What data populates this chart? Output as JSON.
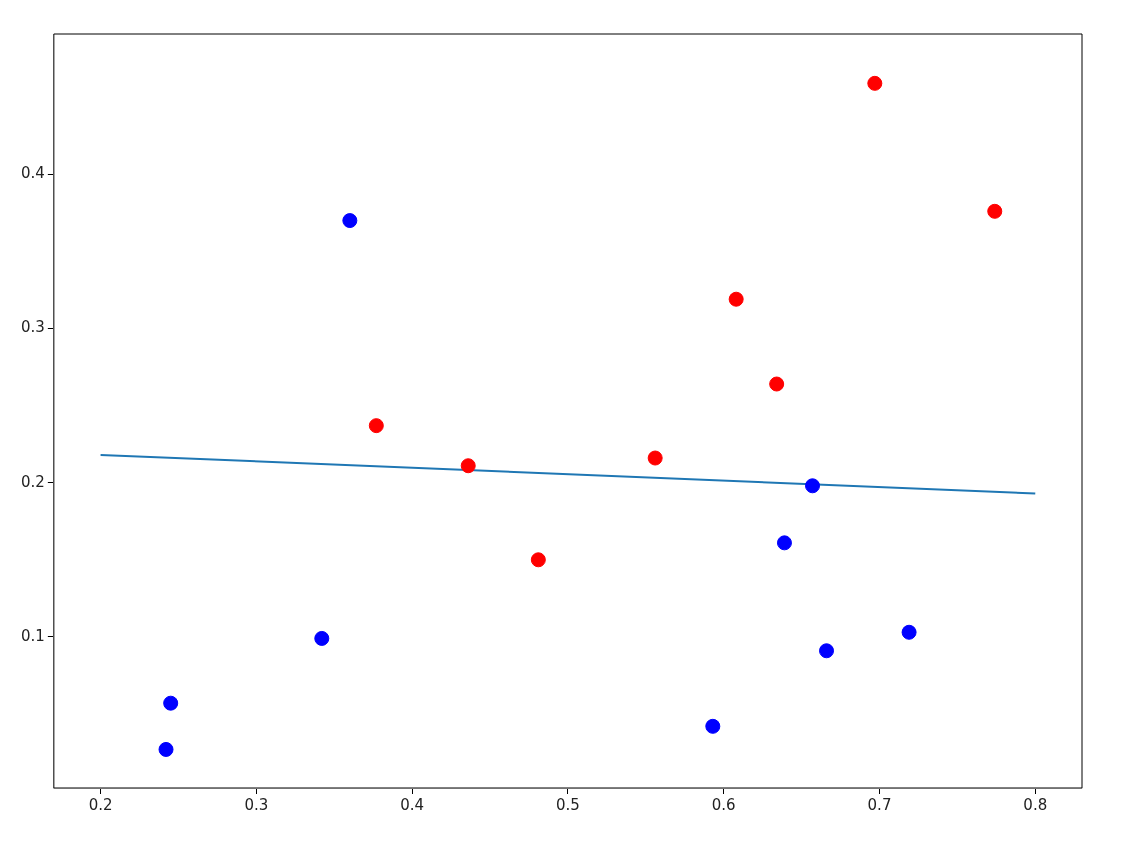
{
  "chart_data": {
    "type": "scatter",
    "xlim": [
      0.17,
      0.83
    ],
    "ylim": [
      0.002,
      0.491
    ],
    "xticks": [
      0.2,
      0.3,
      0.4,
      0.5,
      0.6,
      0.7,
      0.8
    ],
    "yticks": [
      0.1,
      0.2,
      0.3,
      0.4
    ],
    "grid": false,
    "legend": false,
    "marker": "circle",
    "series": [
      {
        "color": "#ff0000",
        "x": [
          0.377,
          0.436,
          0.481,
          0.556,
          0.608,
          0.634,
          0.697,
          0.774
        ],
        "values": [
          0.237,
          0.211,
          0.15,
          0.216,
          0.319,
          0.264,
          0.459,
          0.376
        ]
      },
      {
        "color": "#0000ff",
        "x": [
          0.36,
          0.342,
          0.245,
          0.242,
          0.593,
          0.639,
          0.657,
          0.666,
          0.719
        ],
        "values": [
          0.37,
          0.099,
          0.057,
          0.027,
          0.042,
          0.161,
          0.198,
          0.091,
          0.103
        ]
      },
      {
        "type": "line",
        "marker": "none",
        "color": "#1f77b4",
        "x": [
          0.2,
          0.8
        ],
        "values": [
          0.218,
          0.193
        ]
      }
    ]
  }
}
